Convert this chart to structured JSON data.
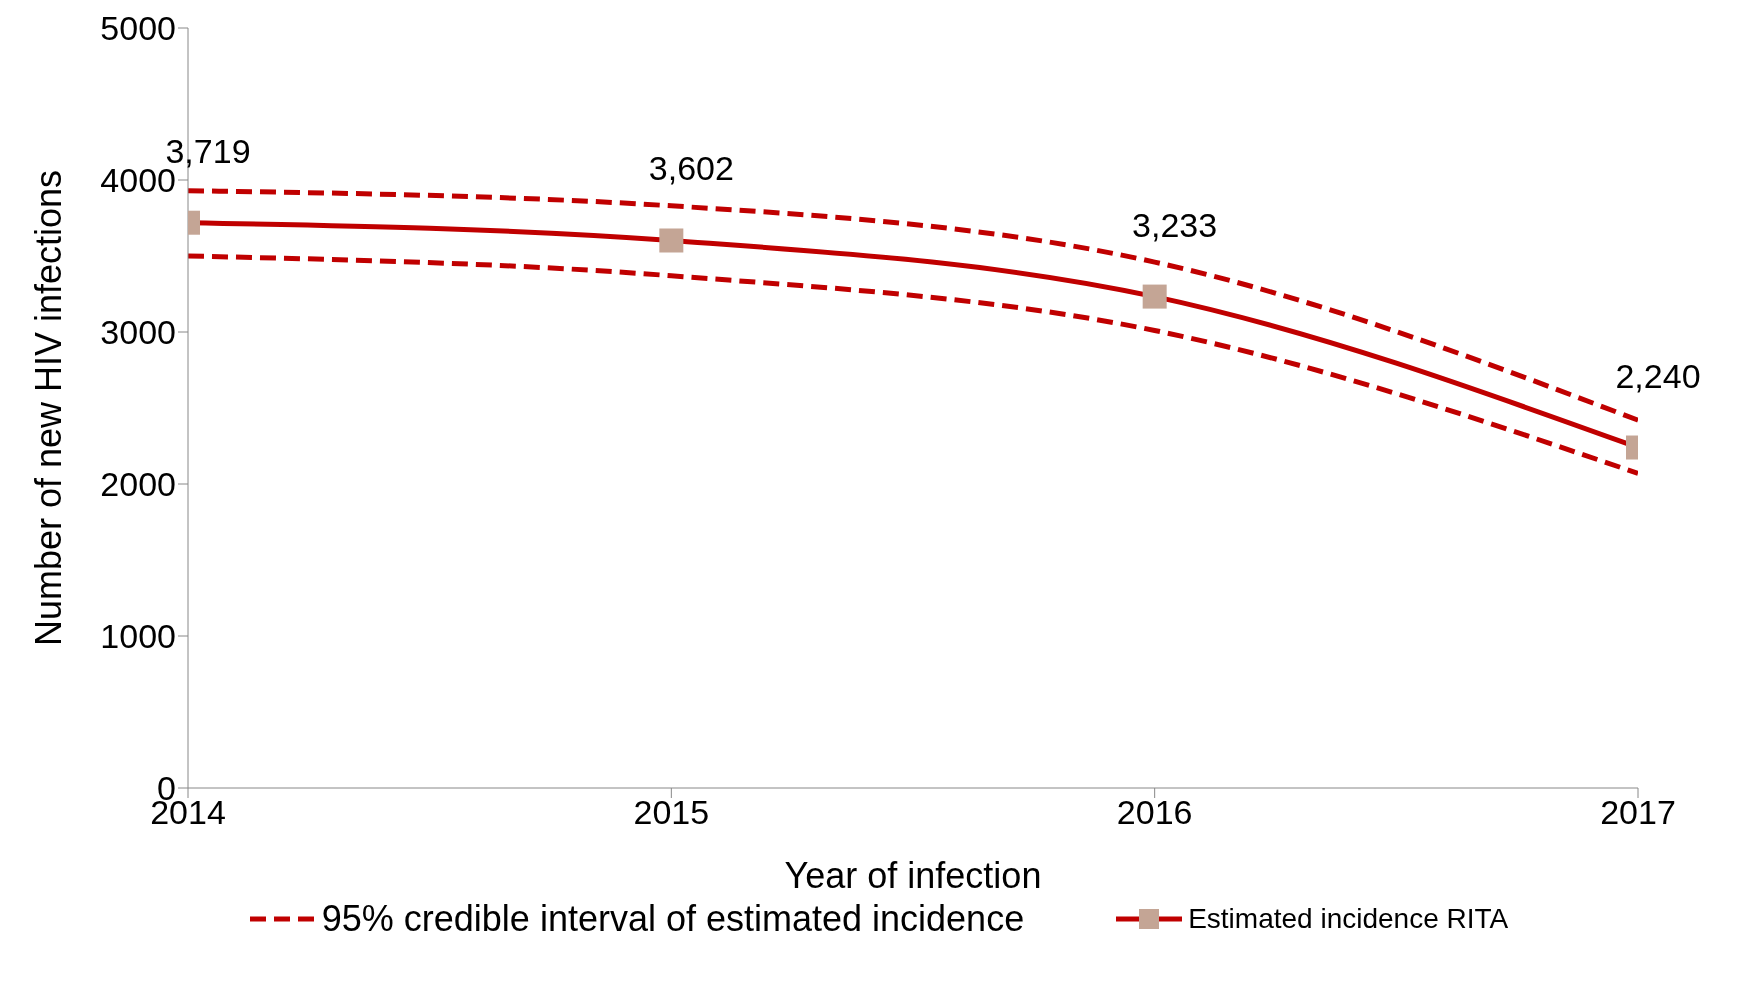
{
  "chart_data": {
    "type": "line",
    "xlabel": "Year of infection",
    "ylabel": "Number of new HIV infections",
    "categories": [
      "2014",
      "2015",
      "2016",
      "2017"
    ],
    "series": [
      {
        "name": "95% credible interval of estimated incidence",
        "color": "#c00000",
        "values": [
          3930,
          3830,
          3460,
          2420
        ],
        "line_style": "dashed",
        "marker": "none"
      },
      {
        "color": "#c00000",
        "values": [
          3500,
          3370,
          3010,
          2070
        ],
        "line_style": "dashed",
        "marker": "none"
      },
      {
        "name": "Estimated incidence RITA",
        "color": "#c00000",
        "values": [
          3719,
          3602,
          3233,
          2240
        ],
        "line_style": "solid",
        "marker": "square",
        "colors": [
          "#c4a595",
          "#c4a595",
          "#c4a595",
          "#c4a595"
        ],
        "value_labels": [
          "3,719",
          "3,602",
          "3,233",
          "2,240"
        ]
      }
    ],
    "ylim": [
      0,
      5000
    ],
    "yticks": [
      0,
      1000,
      2000,
      3000,
      4000,
      5000
    ],
    "legend": "bottom"
  }
}
